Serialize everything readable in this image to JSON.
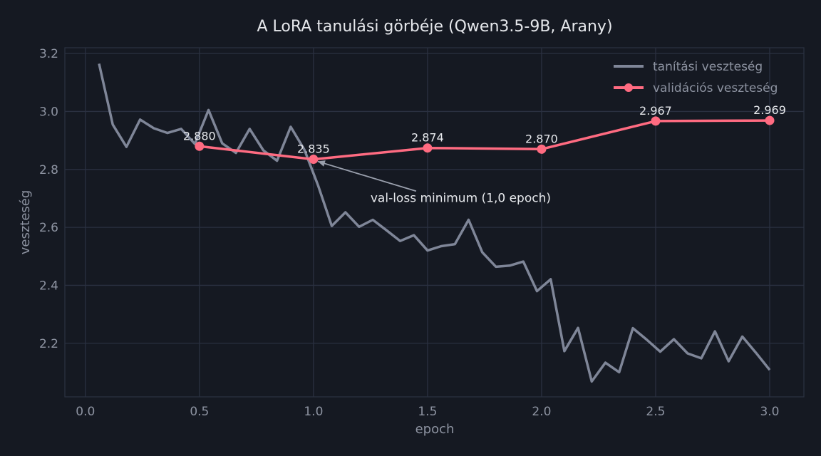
{
  "chart_data": {
    "type": "line",
    "title": "A LoRA tanulási görbéje (Qwen3.5-9B, Arany)",
    "xlabel": "epoch",
    "ylabel": "veszteség",
    "xlim": [
      -0.09,
      3.15
    ],
    "ylim": [
      2.015,
      3.22
    ],
    "xticks": [
      "0.0",
      "0.5",
      "1.0",
      "1.5",
      "2.0",
      "2.5",
      "3.0"
    ],
    "yticks": [
      "2.2",
      "2.4",
      "2.6",
      "2.8",
      "3.0",
      "3.2"
    ],
    "grid": true,
    "legend_position": "top-right",
    "series": [
      {
        "name": "tanítási veszteség",
        "color": "#7f8698",
        "x": [
          0.06,
          0.12,
          0.18,
          0.24,
          0.3,
          0.36,
          0.42,
          0.48,
          0.54,
          0.6,
          0.66,
          0.72,
          0.78,
          0.84,
          0.9,
          0.96,
          1.02,
          1.08,
          1.14,
          1.2,
          1.26,
          1.32,
          1.38,
          1.44,
          1.5,
          1.56,
          1.62,
          1.68,
          1.74,
          1.8,
          1.86,
          1.92,
          1.98,
          2.04,
          2.1,
          2.16,
          2.22,
          2.28,
          2.34,
          2.4,
          2.46,
          2.52,
          2.58,
          2.64,
          2.7,
          2.76,
          2.82,
          2.88,
          2.94,
          3.0
        ],
        "y": [
          3.165,
          2.955,
          2.878,
          2.972,
          2.942,
          2.926,
          2.94,
          2.888,
          3.005,
          2.89,
          2.857,
          2.94,
          2.866,
          2.83,
          2.947,
          2.868,
          2.745,
          2.605,
          2.652,
          2.602,
          2.626,
          2.59,
          2.553,
          2.573,
          2.52,
          2.535,
          2.542,
          2.626,
          2.514,
          2.464,
          2.468,
          2.482,
          2.38,
          2.421,
          2.173,
          2.253,
          2.068,
          2.133,
          2.1,
          2.252,
          2.213,
          2.171,
          2.214,
          2.165,
          2.148,
          2.241,
          2.138,
          2.223,
          2.167,
          2.108
        ]
      },
      {
        "name": "validációs veszteség",
        "color": "#ff6b81",
        "x": [
          0.5,
          1.0,
          1.5,
          2.0,
          2.5,
          3.0
        ],
        "y": [
          2.88,
          2.835,
          2.874,
          2.87,
          2.967,
          2.969
        ],
        "labels": [
          "2.880",
          "2.835",
          "2.874",
          "2.870",
          "2.967",
          "2.969"
        ]
      }
    ],
    "annotations": [
      {
        "text": "val-loss minimum (1,0 epoch)",
        "x": 1.25,
        "y": 2.688,
        "arrow_to": [
          1.0,
          2.835
        ]
      }
    ]
  }
}
